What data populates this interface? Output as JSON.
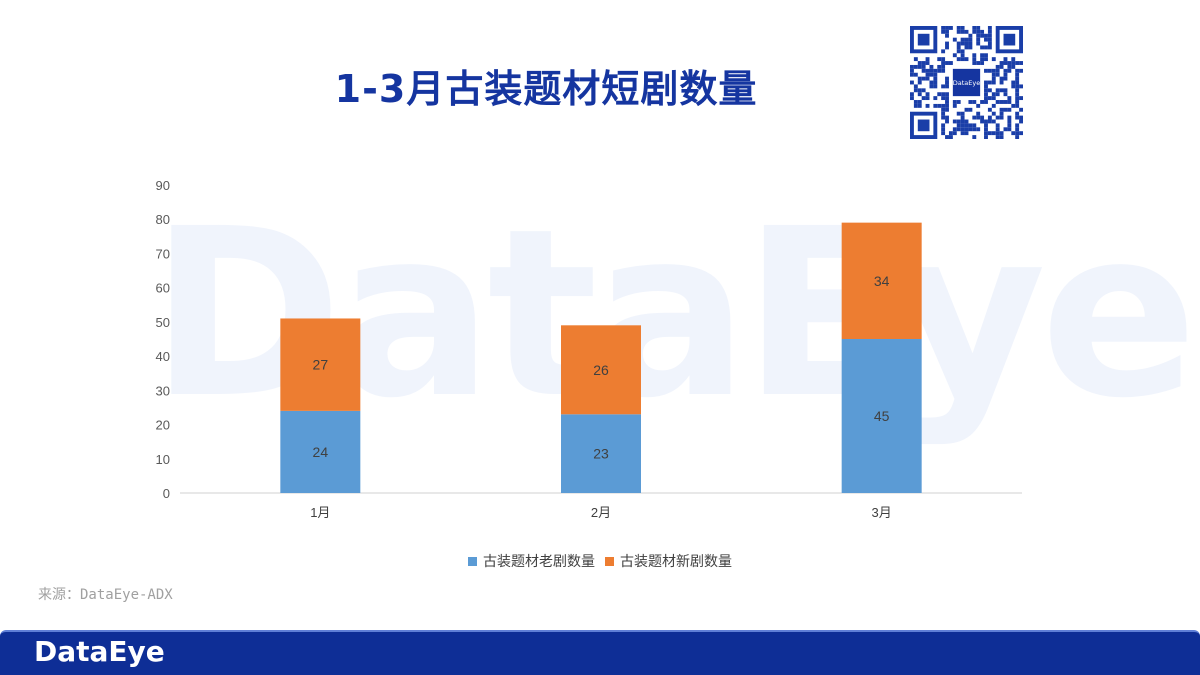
{
  "page": {
    "title": "1-3月古装题材短剧数量",
    "source": "来源：DataEye-ADX",
    "footer_logo": "DataEye",
    "watermark": "DataEye",
    "qr_logo": "DataEye"
  },
  "colors": {
    "title": "#1535a0",
    "series_old": "#5b9bd5",
    "series_new": "#ed7d31",
    "footer": "#0e2e96"
  },
  "chart_data": {
    "type": "bar",
    "stacked": true,
    "categories": [
      "1月",
      "2月",
      "3月"
    ],
    "series": [
      {
        "name": "古装题材老剧数量",
        "values": [
          24,
          23,
          45
        ],
        "color": "#5b9bd5"
      },
      {
        "name": "古装题材新剧数量",
        "values": [
          27,
          26,
          34
        ],
        "color": "#ed7d31"
      }
    ],
    "ylim": [
      0,
      90
    ],
    "yticks": [
      0,
      10,
      20,
      30,
      40,
      50,
      60,
      70,
      80,
      90
    ],
    "grid": false,
    "legend": "bottom",
    "data_labels": true
  }
}
